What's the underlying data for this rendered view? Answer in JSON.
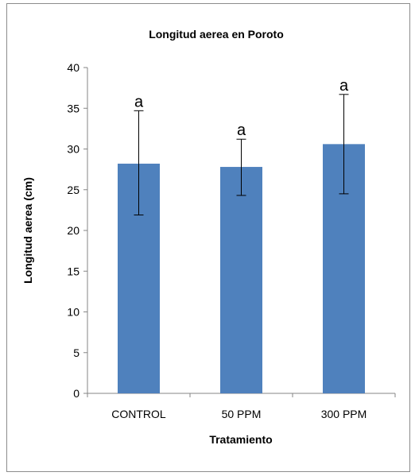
{
  "chart_data": {
    "type": "bar",
    "title": "Longitud aerea en Poroto",
    "xlabel": "Tratamiento",
    "ylabel": "Longitud aerea (cm)",
    "categories": [
      "CONTROL",
      "50  PPM",
      "300 PPM"
    ],
    "values": [
      28.2,
      27.8,
      30.6
    ],
    "error_high": [
      34.7,
      31.2,
      36.7
    ],
    "error_low": [
      21.9,
      24.3,
      24.5
    ],
    "annotations": [
      "a",
      "a",
      "a"
    ],
    "ylim": [
      0,
      40
    ],
    "yticks": [
      0,
      5,
      10,
      15,
      20,
      25,
      30,
      35,
      40
    ],
    "grid": false,
    "legend": "none",
    "colors": {
      "bar": "#4f81bd",
      "axis": "#868686",
      "error": "#000000"
    }
  }
}
